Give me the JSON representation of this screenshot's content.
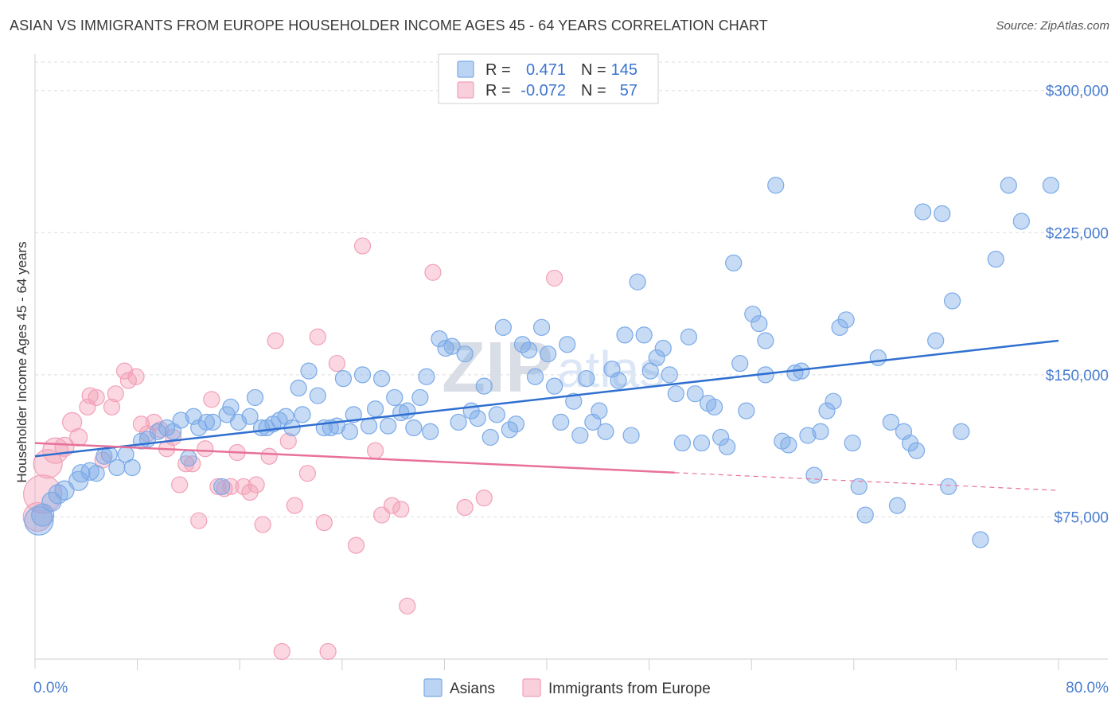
{
  "header": {
    "title": "ASIAN VS IMMIGRANTS FROM EUROPE HOUSEHOLDER INCOME AGES 45 - 64 YEARS CORRELATION CHART",
    "source": "Source: ZipAtlas.com"
  },
  "watermark": {
    "zip": "ZIP",
    "atlas": "atlas"
  },
  "stats_legend": {
    "r_label": "R =",
    "n_label": "N =",
    "rows": [
      {
        "series": "Asians",
        "r": "0.471",
        "n": "145",
        "color": "#7aaae8"
      },
      {
        "series": "Immigrants from Europe",
        "r": "-0.072",
        "n": "57",
        "color": "#f2a0b8"
      }
    ]
  },
  "chart_data": {
    "type": "scatter",
    "title": "ASIAN VS IMMIGRANTS FROM EUROPE HOUSEHOLDER INCOME AGES 45 - 64 YEARS CORRELATION CHART",
    "xlabel": "",
    "ylabel": "Householder Income Ages 45 - 64 years",
    "xlim": [
      0,
      80
    ],
    "ylim": [
      0,
      315000
    ],
    "x_tick_labels": [
      "0.0%",
      "80.0%"
    ],
    "y_ticks": [
      75000,
      150000,
      225000,
      300000
    ],
    "y_tick_labels": [
      "$75,000",
      "$150,000",
      "$225,000",
      "$300,000"
    ],
    "grid": true,
    "legend": "bottom-center",
    "series": [
      {
        "name": "Asians",
        "color": "#7aaae8",
        "line_color": "#2f6fcf",
        "trend": {
          "x": [
            0,
            80
          ],
          "y": [
            107000,
            168000
          ],
          "dashed_from": null
        },
        "points": [
          [
            0.3,
            73000,
            18
          ],
          [
            0.6,
            76000,
            14
          ],
          [
            1.3,
            83000,
            12
          ],
          [
            1.8,
            87000,
            12
          ],
          [
            2.3,
            89000,
            12
          ],
          [
            3.4,
            94000,
            12
          ],
          [
            3.6,
            98000,
            11
          ],
          [
            4.3,
            99000,
            11
          ],
          [
            4.8,
            98000,
            10
          ],
          [
            5.4,
            107000,
            10
          ],
          [
            5.8,
            108000,
            10
          ],
          [
            6.4,
            101000,
            10
          ],
          [
            7.1,
            108000,
            10
          ],
          [
            7.6,
            101000,
            10
          ],
          [
            8.3,
            115000,
            10
          ],
          [
            8.8,
            116000,
            10
          ],
          [
            9.6,
            120000,
            10
          ],
          [
            10.3,
            122000,
            10
          ],
          [
            10.8,
            120000,
            10
          ],
          [
            11.4,
            126000,
            10
          ],
          [
            12.0,
            106000,
            10
          ],
          [
            12.4,
            128000,
            10
          ],
          [
            12.8,
            122000,
            10
          ],
          [
            13.4,
            125000,
            10
          ],
          [
            13.9,
            125000,
            10
          ],
          [
            14.6,
            91000,
            10
          ],
          [
            15.0,
            129000,
            10
          ],
          [
            15.3,
            133000,
            10
          ],
          [
            15.9,
            125000,
            10
          ],
          [
            16.8,
            128000,
            10
          ],
          [
            17.2,
            138000,
            10
          ],
          [
            17.7,
            122000,
            10
          ],
          [
            18.1,
            122000,
            10
          ],
          [
            18.6,
            124000,
            10
          ],
          [
            19.1,
            126000,
            10
          ],
          [
            19.6,
            128000,
            10
          ],
          [
            20.1,
            122000,
            10
          ],
          [
            20.6,
            143000,
            10
          ],
          [
            20.9,
            129000,
            10
          ],
          [
            21.4,
            152000,
            10
          ],
          [
            22.1,
            139000,
            10
          ],
          [
            22.6,
            122000,
            10
          ],
          [
            23.1,
            122000,
            10
          ],
          [
            23.6,
            123000,
            10
          ],
          [
            24.1,
            148000,
            10
          ],
          [
            24.6,
            120000,
            10
          ],
          [
            24.9,
            129000,
            10
          ],
          [
            25.6,
            150000,
            10
          ],
          [
            26.1,
            123000,
            10
          ],
          [
            26.6,
            132000,
            10
          ],
          [
            27.1,
            148000,
            10
          ],
          [
            27.6,
            123000,
            10
          ],
          [
            28.1,
            138000,
            10
          ],
          [
            28.6,
            130000,
            10
          ],
          [
            29.1,
            131000,
            10
          ],
          [
            29.6,
            122000,
            10
          ],
          [
            30.1,
            138000,
            10
          ],
          [
            30.6,
            149000,
            10
          ],
          [
            30.9,
            120000,
            10
          ],
          [
            31.6,
            169000,
            10
          ],
          [
            32.1,
            164000,
            10
          ],
          [
            32.6,
            165000,
            10
          ],
          [
            33.1,
            125000,
            10
          ],
          [
            33.6,
            161000,
            10
          ],
          [
            34.1,
            131000,
            10
          ],
          [
            34.6,
            127000,
            10
          ],
          [
            35.1,
            144000,
            10
          ],
          [
            35.6,
            117000,
            10
          ],
          [
            36.1,
            129000,
            10
          ],
          [
            36.6,
            175000,
            10
          ],
          [
            37.1,
            121000,
            10
          ],
          [
            37.6,
            124000,
            10
          ],
          [
            38.1,
            166000,
            10
          ],
          [
            38.6,
            163000,
            10
          ],
          [
            39.1,
            149000,
            10
          ],
          [
            39.6,
            175000,
            10
          ],
          [
            40.1,
            161000,
            10
          ],
          [
            40.6,
            144000,
            10
          ],
          [
            41.1,
            125000,
            10
          ],
          [
            41.6,
            166000,
            10
          ],
          [
            42.1,
            136000,
            10
          ],
          [
            42.6,
            118000,
            10
          ],
          [
            43.1,
            148000,
            10
          ],
          [
            43.6,
            125000,
            10
          ],
          [
            44.1,
            131000,
            10
          ],
          [
            44.6,
            120000,
            10
          ],
          [
            45.1,
            153000,
            10
          ],
          [
            45.6,
            147000,
            10
          ],
          [
            46.1,
            171000,
            10
          ],
          [
            46.6,
            118000,
            10
          ],
          [
            47.1,
            199000,
            10
          ],
          [
            47.6,
            171000,
            10
          ],
          [
            48.1,
            152000,
            10
          ],
          [
            48.6,
            159000,
            10
          ],
          [
            49.1,
            164000,
            10
          ],
          [
            49.6,
            150000,
            10
          ],
          [
            50.1,
            140000,
            10
          ],
          [
            50.6,
            114000,
            10
          ],
          [
            51.1,
            170000,
            10
          ],
          [
            51.6,
            140000,
            10
          ],
          [
            52.1,
            114000,
            10
          ],
          [
            52.6,
            135000,
            10
          ],
          [
            53.1,
            133000,
            10
          ],
          [
            53.6,
            117000,
            10
          ],
          [
            54.1,
            112000,
            10
          ],
          [
            54.6,
            209000,
            10
          ],
          [
            55.1,
            156000,
            10
          ],
          [
            55.6,
            131000,
            10
          ],
          [
            56.1,
            182000,
            10
          ],
          [
            56.6,
            177000,
            10
          ],
          [
            57.1,
            150000,
            10
          ],
          [
            57.1,
            168000,
            10
          ],
          [
            57.9,
            250000,
            10
          ],
          [
            58.4,
            115000,
            10
          ],
          [
            58.9,
            113000,
            10
          ],
          [
            59.4,
            151000,
            10
          ],
          [
            59.9,
            152000,
            10
          ],
          [
            60.4,
            118000,
            10
          ],
          [
            60.9,
            97000,
            10
          ],
          [
            61.4,
            120000,
            10
          ],
          [
            61.9,
            131000,
            10
          ],
          [
            62.4,
            136000,
            10
          ],
          [
            62.9,
            175000,
            10
          ],
          [
            63.4,
            179000,
            10
          ],
          [
            63.9,
            114000,
            10
          ],
          [
            64.4,
            91000,
            10
          ],
          [
            64.9,
            76000,
            10
          ],
          [
            65.9,
            159000,
            10
          ],
          [
            66.9,
            125000,
            10
          ],
          [
            67.4,
            81000,
            10
          ],
          [
            67.9,
            120000,
            10
          ],
          [
            68.4,
            114000,
            10
          ],
          [
            68.9,
            110000,
            10
          ],
          [
            69.4,
            236000,
            10
          ],
          [
            70.4,
            168000,
            10
          ],
          [
            70.9,
            235000,
            10
          ],
          [
            71.4,
            91000,
            10
          ],
          [
            71.7,
            189000,
            10
          ],
          [
            72.4,
            120000,
            10
          ],
          [
            73.9,
            63000,
            10
          ],
          [
            75.1,
            211000,
            10
          ],
          [
            76.1,
            250000,
            10
          ],
          [
            77.1,
            231000,
            10
          ],
          [
            79.4,
            250000,
            10
          ]
        ]
      },
      {
        "name": "Immigrants from Europe",
        "color": "#f2a0b8",
        "line_color": "#e8719a",
        "trend": {
          "x": [
            0,
            80
          ],
          "y": [
            114000,
            89000
          ],
          "dashed_from": 50
        },
        "points": [
          [
            0.2,
            75000,
            18
          ],
          [
            0.6,
            87000,
            24
          ],
          [
            1.0,
            103000,
            18
          ],
          [
            1.6,
            110000,
            16
          ],
          [
            2.3,
            112000,
            12
          ],
          [
            2.9,
            125000,
            12
          ],
          [
            3.4,
            117000,
            11
          ],
          [
            4.1,
            133000,
            10
          ],
          [
            4.3,
            139000,
            10
          ],
          [
            4.8,
            138000,
            10
          ],
          [
            5.3,
            105000,
            10
          ],
          [
            6.0,
            133000,
            10
          ],
          [
            6.3,
            140000,
            10
          ],
          [
            7.0,
            152000,
            10
          ],
          [
            7.3,
            147000,
            10
          ],
          [
            7.9,
            149000,
            10
          ],
          [
            8.3,
            124000,
            10
          ],
          [
            8.8,
            119000,
            10
          ],
          [
            9.3,
            125000,
            10
          ],
          [
            9.8,
            121000,
            10
          ],
          [
            10.3,
            111000,
            10
          ],
          [
            10.8,
            117000,
            10
          ],
          [
            11.3,
            92000,
            10
          ],
          [
            11.8,
            103000,
            10
          ],
          [
            12.3,
            103000,
            10
          ],
          [
            12.8,
            73000,
            10
          ],
          [
            13.3,
            111000,
            10
          ],
          [
            13.8,
            137000,
            10
          ],
          [
            14.3,
            91000,
            10
          ],
          [
            14.8,
            90000,
            10
          ],
          [
            15.3,
            91000,
            10
          ],
          [
            15.8,
            109000,
            10
          ],
          [
            16.3,
            91000,
            10
          ],
          [
            16.8,
            88000,
            10
          ],
          [
            17.3,
            92000,
            10
          ],
          [
            17.8,
            71000,
            10
          ],
          [
            18.3,
            107000,
            10
          ],
          [
            18.8,
            168000,
            10
          ],
          [
            19.3,
            4000,
            10
          ],
          [
            19.8,
            115000,
            10
          ],
          [
            20.3,
            81000,
            10
          ],
          [
            21.3,
            98000,
            10
          ],
          [
            22.1,
            170000,
            10
          ],
          [
            22.6,
            72000,
            10
          ],
          [
            22.9,
            4000,
            10
          ],
          [
            23.6,
            156000,
            10
          ],
          [
            25.1,
            60000,
            10
          ],
          [
            25.6,
            218000,
            10
          ],
          [
            26.6,
            110000,
            10
          ],
          [
            27.1,
            76000,
            10
          ],
          [
            27.9,
            81000,
            10
          ],
          [
            28.6,
            79000,
            10
          ],
          [
            29.1,
            28000,
            10
          ],
          [
            31.1,
            204000,
            10
          ],
          [
            33.6,
            80000,
            10
          ],
          [
            35.1,
            85000,
            10
          ],
          [
            40.6,
            201000,
            10
          ]
        ]
      }
    ]
  }
}
